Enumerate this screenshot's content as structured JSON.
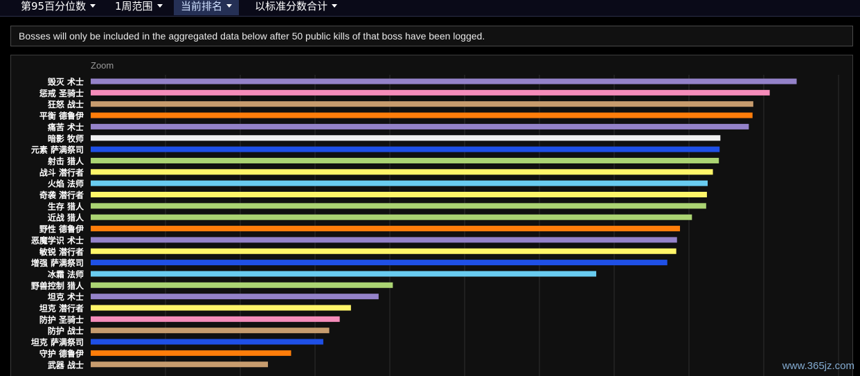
{
  "toolbar": {
    "items": [
      {
        "label": "第95百分位数"
      },
      {
        "label": "1周范围"
      },
      {
        "label": "当前排名"
      },
      {
        "label": "以标准分数合计"
      }
    ]
  },
  "notice": "Bosses will only be included in the aggregated data below after 50 public kills of that boss have been logged.",
  "watermark": "www.365jz.com",
  "colors": {
    "warlock": "#9482c9",
    "paladin": "#f58cba",
    "warrior": "#c79c6e",
    "druid": "#ff7d0a",
    "priest": "#f0f0f0",
    "shaman": "#1f50e6",
    "hunter": "#abd473",
    "rogue": "#fff569",
    "mage": "#69ccf0"
  },
  "chart_data": {
    "type": "bar",
    "orientation": "horizontal",
    "zoom_label": "Zoom",
    "xlim": [
      0,
      1000
    ],
    "grid": true,
    "categories": [
      "毁灭 术士",
      "惩戒 圣骑士",
      "狂怒 战士",
      "平衡 德鲁伊",
      "痛苦 术士",
      "暗影 牧师",
      "元素 萨满祭司",
      "射击 猎人",
      "战斗 潜行者",
      "火焰 法师",
      "奇袭 潜行者",
      "生存 猎人",
      "近战 猎人",
      "野性 德鲁伊",
      "恶魔学识 术士",
      "敏锐 潜行者",
      "增强 萨满祭司",
      "冰霜 法师",
      "野兽控制 猎人",
      "坦克 术士",
      "坦克 潜行者",
      "防护 圣骑士",
      "防护 战士",
      "坦克 萨满祭司",
      "守护 德鲁伊",
      "武器 战士"
    ],
    "values": [
      944,
      908,
      886,
      885,
      880,
      842,
      841,
      840,
      832,
      825,
      824,
      823,
      804,
      788,
      784,
      783,
      771,
      676,
      404,
      385,
      348,
      333,
      319,
      311,
      268,
      237
    ],
    "bar_colors": [
      "warlock",
      "paladin",
      "warrior",
      "druid",
      "warlock",
      "priest",
      "shaman",
      "hunter",
      "rogue",
      "mage",
      "rogue",
      "hunter",
      "hunter",
      "druid",
      "warlock",
      "rogue",
      "shaman",
      "mage",
      "hunter",
      "warlock",
      "rogue",
      "paladin",
      "warrior",
      "shaman",
      "druid",
      "warrior"
    ]
  }
}
